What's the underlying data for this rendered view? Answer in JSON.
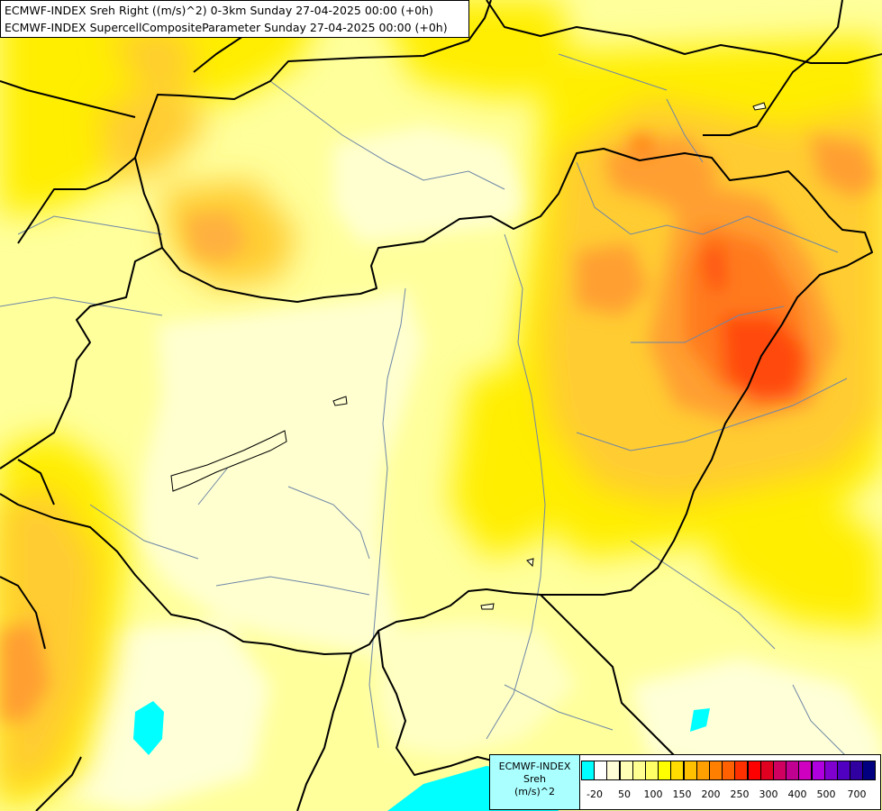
{
  "title_lines": [
    "ECMWF-INDEX Sreh Right ((m/s)^2) 0-3km Sunday 27-04-2025 00:00 (+0h)",
    "ECMWF-INDEX SupercellCompositeParameter Sunday 27-04-2025 00:00 (+0h)"
  ],
  "legend": {
    "title_lines": [
      "ECMWF-INDEX",
      "Sreh",
      "(m/s)^2"
    ],
    "swatch_colors": [
      "#00ffff",
      "#ffffff",
      "#fffcd8",
      "#ffffb6",
      "#ffff91",
      "#ffff66",
      "#ffff00",
      "#ffdd00",
      "#ffc000",
      "#ffa000",
      "#ff8000",
      "#ff6000",
      "#ff3000",
      "#ff0000",
      "#e00020",
      "#d00060",
      "#c00090",
      "#d000c0",
      "#b000e0",
      "#8000d0",
      "#5000c0",
      "#3000a0",
      "#000080"
    ],
    "tick_labels": [
      "-20",
      "50",
      "100",
      "150",
      "200",
      "250",
      "300",
      "400",
      "500",
      "700"
    ]
  },
  "colors": {
    "cyan": "#00ffff",
    "pale": "#ffffd0",
    "light_yellow": "#ffff9c",
    "yellow": "#ffee00",
    "gold": "#ffcc33",
    "orange": "#ff9f33",
    "dark_orange": "#ff7a1a",
    "red_orange": "#ff4a10",
    "border": "#000000",
    "river": "#6e86a6"
  }
}
